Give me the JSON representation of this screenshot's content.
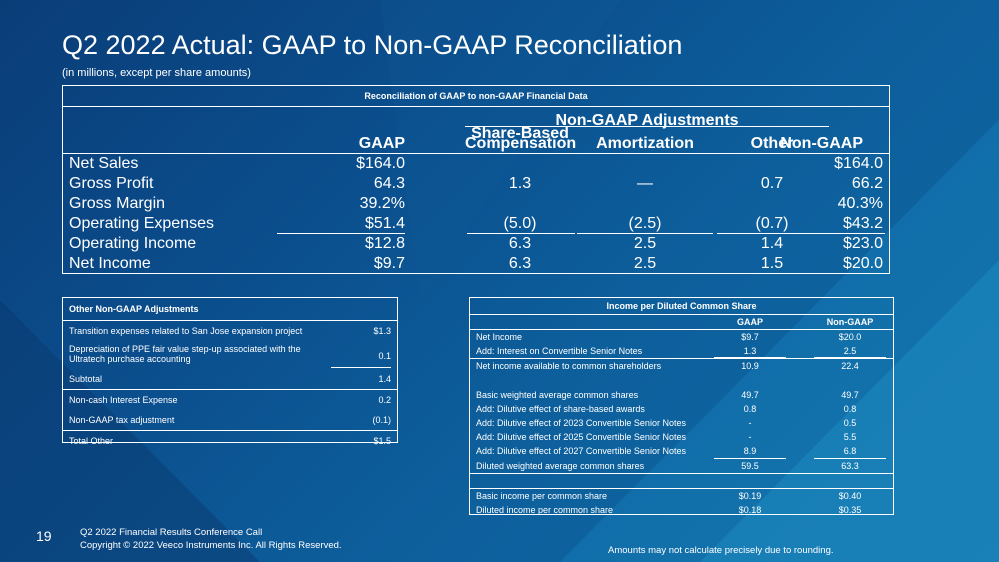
{
  "title": "Q2 2022 Actual: GAAP to Non-GAAP Reconciliation",
  "subtitle": "(in millions, except per share amounts)",
  "main_table": {
    "caption": "Reconciliation of GAAP to non-GAAP Financial Data",
    "group_header": "Non-GAAP Adjustments",
    "columns": [
      "GAAP",
      "Share-Based Compensation",
      "Amortization",
      "Other",
      "Non-GAAP"
    ],
    "rows": [
      {
        "label": "Net Sales",
        "gaap": "$164.0",
        "sbc": "",
        "amort": "",
        "other": "",
        "nongaap": "$164.0"
      },
      {
        "label": "Gross Profit",
        "gaap": "64.3",
        "sbc": "1.3",
        "amort": "—",
        "other": "0.7",
        "nongaap": "66.2"
      },
      {
        "label": "Gross Margin",
        "gaap": "39.2%",
        "sbc": "",
        "amort": "",
        "other": "",
        "nongaap": "40.3%"
      },
      {
        "label": "Operating Expenses",
        "gaap": "$51.4",
        "sbc": "(5.0)",
        "amort": "(2.5)",
        "other": "(0.7)",
        "nongaap": "$43.2"
      },
      {
        "label": "Operating Income",
        "gaap": "$12.8",
        "sbc": "6.3",
        "amort": "2.5",
        "other": "1.4",
        "nongaap": "$23.0"
      },
      {
        "label": "Net Income",
        "gaap": "$9.7",
        "sbc": "6.3",
        "amort": "2.5",
        "other": "1.5",
        "nongaap": "$20.0"
      }
    ]
  },
  "other_adjustments": {
    "caption": "Other Non-GAAP Adjustments",
    "rows": [
      {
        "label": "Transition expenses related to San Jose expansion project",
        "value": "$1.3"
      },
      {
        "label": "Depreciation of PPE fair value step-up associated with the",
        "label2": "Ultratech purchase accounting",
        "value": "0.1"
      },
      {
        "label": "Subtotal",
        "value": "1.4"
      },
      {
        "label": "Non-cash Interest Expense",
        "value": "0.2"
      },
      {
        "label": "Non-GAAP tax adjustment",
        "value": "(0.1)"
      },
      {
        "label": "Total Other",
        "value": "$1.5"
      }
    ]
  },
  "per_share": {
    "caption": "Income per Diluted Common Share",
    "col_gaap": "GAAP",
    "col_nongaap": "Non-GAAP",
    "rows": [
      {
        "label": "Net Income",
        "gaap": "$9.7",
        "nongaap": "$20.0"
      },
      {
        "label": "Add: Interest on Convertible Senior Notes",
        "gaap": "1.3",
        "nongaap": "2.5"
      },
      {
        "label": "Net income available to common shareholders",
        "gaap": "10.9",
        "nongaap": "22.4"
      },
      {
        "label": "Basic weighted average common shares",
        "gaap": "49.7",
        "nongaap": "49.7"
      },
      {
        "label": "Add: Dilutive effect of share-based awards",
        "gaap": "0.8",
        "nongaap": "0.8"
      },
      {
        "label": "Add: Dilutive effect of 2023 Convertible Senior Notes",
        "gaap": "-",
        "nongaap": "0.5"
      },
      {
        "label": "Add: Dilutive effect of 2025 Convertible Senior Notes",
        "gaap": "-",
        "nongaap": "5.5"
      },
      {
        "label": "Add: Dilutive effect of 2027 Convertible Senior Notes",
        "gaap": "8.9",
        "nongaap": "6.8"
      },
      {
        "label": "Diluted weighted average common shares",
        "gaap": "59.5",
        "nongaap": "63.3"
      },
      {
        "label": "Basic income per common share",
        "gaap": "$0.19",
        "nongaap": "$0.40"
      },
      {
        "label": "Diluted income per common share",
        "gaap": "$0.18",
        "nongaap": "$0.35"
      }
    ]
  },
  "footer": {
    "page_number": "19",
    "line1": "Q2 2022 Financial Results Conference Call",
    "line2": "Copyright © 2022 Veeco Instruments Inc. All Rights Reserved.",
    "note": "Amounts may not calculate precisely due to rounding."
  }
}
